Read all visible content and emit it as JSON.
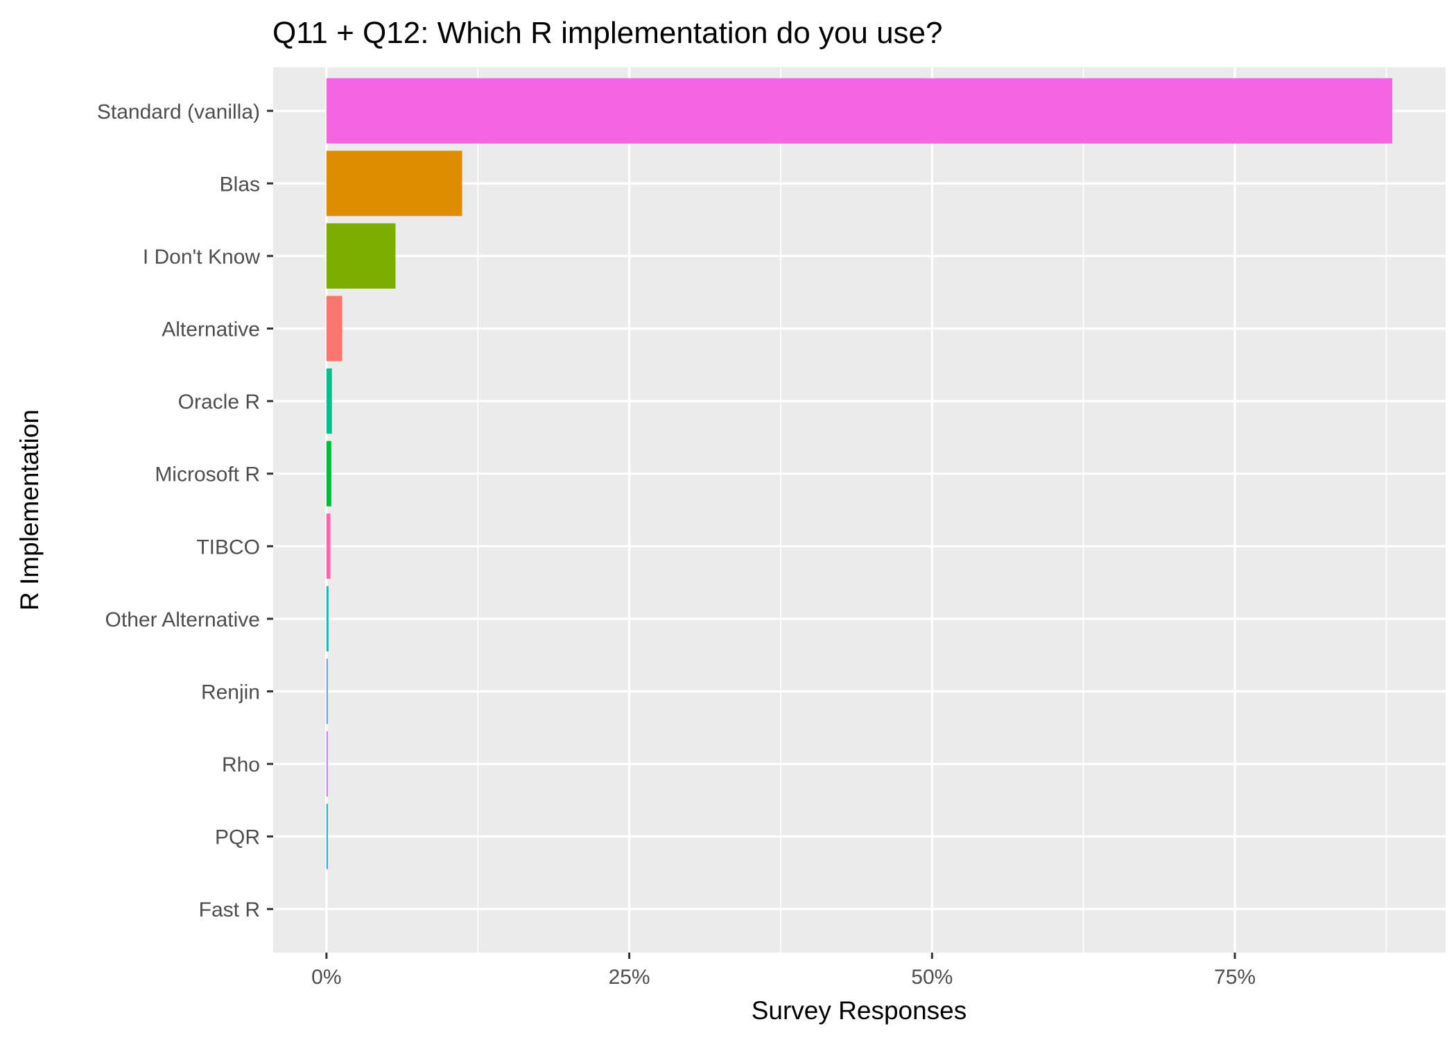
{
  "chart_data": {
    "type": "bar",
    "orientation": "horizontal",
    "title": "Q11 + Q12: Which R implementation do you use?",
    "xlabel": "Survey Responses",
    "ylabel": "R Implementation",
    "categories": [
      "Standard (vanilla)",
      "Blas",
      "I Don't Know",
      "Alternative",
      "Oracle R",
      "Microsoft R",
      "TIBCO",
      "Other Alternative",
      "Renjin",
      "Rho",
      "PQR",
      "Fast R"
    ],
    "values": [
      0.88,
      0.112,
      0.057,
      0.013,
      0.0045,
      0.004,
      0.0033,
      0.0017,
      0.0006,
      0.0005,
      0.0004,
      0.0
    ],
    "colors": [
      "#F564E3",
      "#DE8C00",
      "#7CAE00",
      "#F8766D",
      "#00C08B",
      "#00BA38",
      "#FF64B0",
      "#00BFC4",
      "#619CFF",
      "#C77CFF",
      "#00B4F0",
      "#B79F00"
    ],
    "x_ticks": [
      0,
      0.25,
      0.5,
      0.75
    ],
    "x_tick_labels": [
      "0%",
      "25%",
      "50%",
      "75%"
    ],
    "xlim": [
      -0.044,
      0.924
    ],
    "grid": true,
    "legend": "none",
    "background": "#EBEBEB",
    "grid_color": "#FFFFFF"
  }
}
